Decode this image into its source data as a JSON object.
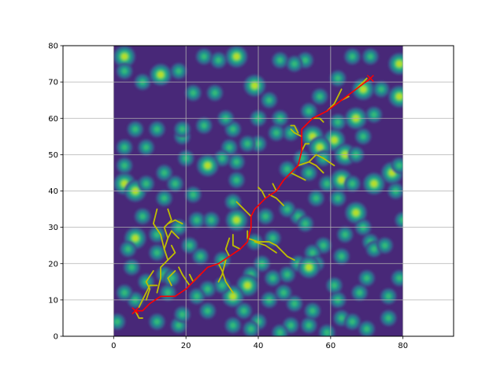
{
  "chart_data": {
    "type": "contour-path",
    "title": "",
    "xlabel": "",
    "ylabel": "",
    "xlim": [
      -14,
      94
    ],
    "ylim": [
      0,
      80
    ],
    "map_extent": {
      "x": [
        0,
        80
      ],
      "y": [
        0,
        80
      ]
    },
    "grid": true,
    "x_ticks": [
      0,
      20,
      40,
      60,
      80
    ],
    "y_ticks": [
      0,
      10,
      20,
      30,
      40,
      50,
      60,
      70,
      80
    ],
    "colors": {
      "background": "#440154",
      "field": "#482878",
      "contour_levels": [
        "#3e4a89",
        "#31688e",
        "#26828e",
        "#1f9e89",
        "#35b779",
        "#6ece58",
        "#b5de2b"
      ],
      "tree": "#bfbf00",
      "path": "#ff0000",
      "grid": "#b0b0b0"
    },
    "obstacles": [
      [
        3,
        77,
        2
      ],
      [
        3,
        73,
        1.5
      ],
      [
        8,
        70,
        1.5
      ],
      [
        13,
        72,
        2
      ],
      [
        18,
        73,
        1.5
      ],
      [
        25,
        77,
        1.5
      ],
      [
        29,
        76,
        1.5
      ],
      [
        34,
        77,
        2
      ],
      [
        22,
        67,
        1.5
      ],
      [
        28,
        67,
        1.5
      ],
      [
        39,
        69,
        2
      ],
      [
        46,
        76,
        1.5
      ],
      [
        53,
        76,
        1.5
      ],
      [
        50,
        75,
        1.5
      ],
      [
        66,
        77,
        1.5
      ],
      [
        71,
        77,
        1.5
      ],
      [
        79,
        75,
        2
      ],
      [
        62,
        71,
        1.5
      ],
      [
        69,
        68,
        2
      ],
      [
        79,
        66,
        2
      ],
      [
        74,
        68,
        1.5
      ],
      [
        43,
        65,
        1.5
      ],
      [
        46,
        60,
        1.5
      ],
      [
        49,
        56,
        1.5
      ],
      [
        57,
        66,
        1.5
      ],
      [
        54,
        62,
        1.5
      ],
      [
        67,
        60,
        2
      ],
      [
        72,
        61,
        1.5
      ],
      [
        62,
        59,
        1.5
      ],
      [
        61,
        54,
        2
      ],
      [
        64,
        50,
        2
      ],
      [
        69,
        55,
        1.5
      ],
      [
        67,
        50,
        1.5
      ],
      [
        77,
        45,
        2
      ],
      [
        79,
        47,
        1.5
      ],
      [
        72,
        42,
        2
      ],
      [
        78,
        40,
        1.5
      ],
      [
        59,
        42,
        1.5
      ],
      [
        63,
        43,
        2
      ],
      [
        66,
        42,
        1.5
      ],
      [
        55,
        55,
        2
      ],
      [
        57,
        52,
        2
      ],
      [
        58,
        49,
        1.5
      ],
      [
        52,
        49,
        1.5
      ],
      [
        54,
        45,
        1.5
      ],
      [
        48,
        46,
        1.5
      ],
      [
        45,
        56,
        1.5
      ],
      [
        40,
        53,
        1.5
      ],
      [
        37,
        53,
        1.5
      ],
      [
        33,
        57,
        1.5
      ],
      [
        31,
        60,
        1.5
      ],
      [
        32,
        52,
        1.5
      ],
      [
        34,
        48,
        1.5
      ],
      [
        30,
        49,
        1.5
      ],
      [
        26,
        47,
        2
      ],
      [
        20,
        49,
        1.5
      ],
      [
        19,
        55,
        1.5
      ],
      [
        19,
        57,
        1.5
      ],
      [
        12,
        57,
        1.5
      ],
      [
        6,
        57,
        1.5
      ],
      [
        3,
        52,
        1.5
      ],
      [
        9,
        52,
        1.5
      ],
      [
        3,
        47,
        1.5
      ],
      [
        3,
        42,
        2
      ],
      [
        6,
        40,
        2
      ],
      [
        9,
        42,
        1.5
      ],
      [
        14,
        38,
        1.5
      ],
      [
        17,
        42,
        1.5
      ],
      [
        22,
        39,
        1.5
      ],
      [
        23,
        32,
        1.5
      ],
      [
        27,
        32,
        1.5
      ],
      [
        33,
        37,
        1.5
      ],
      [
        34,
        43,
        1.5
      ],
      [
        34,
        32,
        2
      ],
      [
        39,
        26,
        1.5
      ],
      [
        44,
        27,
        1.5
      ],
      [
        51,
        33,
        1.5
      ],
      [
        53,
        31,
        1.5
      ],
      [
        48,
        35,
        1.5
      ],
      [
        56,
        38,
        1.5
      ],
      [
        62,
        38,
        1.5
      ],
      [
        67,
        34,
        2
      ],
      [
        69,
        30,
        1.5
      ],
      [
        71,
        26,
        1.5
      ],
      [
        72,
        24,
        1.5
      ],
      [
        63,
        22,
        1.5
      ],
      [
        58,
        25,
        1.5
      ],
      [
        55,
        23,
        1.5
      ],
      [
        56,
        20,
        1.5
      ],
      [
        51,
        20,
        1.5
      ],
      [
        48,
        17,
        1.5
      ],
      [
        44,
        16,
        1.5
      ],
      [
        41,
        20,
        1.5
      ],
      [
        38,
        17,
        1.5
      ],
      [
        37,
        14,
        2
      ],
      [
        33,
        11,
        2
      ],
      [
        30,
        14,
        1.5
      ],
      [
        26,
        13,
        1.5
      ],
      [
        23,
        11,
        1.5
      ],
      [
        30,
        21,
        1.5
      ],
      [
        24,
        22,
        1.5
      ],
      [
        21,
        25,
        1.5
      ],
      [
        18,
        30,
        1.5
      ],
      [
        12,
        28,
        1.5
      ],
      [
        12,
        23,
        1.5
      ],
      [
        6,
        27,
        2
      ],
      [
        4,
        24,
        1.5
      ],
      [
        5,
        19,
        1.5
      ],
      [
        9,
        15,
        1.5
      ],
      [
        6,
        10,
        1.5
      ],
      [
        3,
        12,
        1.5
      ],
      [
        1,
        4,
        1.5
      ],
      [
        12,
        4,
        1.5
      ],
      [
        18,
        3,
        1.5
      ],
      [
        19,
        6,
        1.5
      ],
      [
        15,
        12,
        1.5
      ],
      [
        14,
        17,
        1.5
      ],
      [
        16,
        16,
        1.5
      ],
      [
        26,
        7,
        1.5
      ],
      [
        33,
        3,
        1.5
      ],
      [
        40,
        4,
        1.5
      ],
      [
        43,
        10,
        1.5
      ],
      [
        47,
        12,
        1.5
      ],
      [
        50,
        9,
        1.5
      ],
      [
        49,
        3,
        1.5
      ],
      [
        54,
        3,
        1.5
      ],
      [
        55,
        7,
        1.5
      ],
      [
        54,
        19,
        2
      ],
      [
        62,
        10,
        1.5
      ],
      [
        63,
        5,
        1.5
      ],
      [
        66,
        4,
        1.5
      ],
      [
        68,
        12,
        1.5
      ],
      [
        70,
        16,
        1.5
      ],
      [
        79,
        16,
        1.5
      ],
      [
        76,
        11,
        1.5
      ],
      [
        76,
        5,
        1.5
      ],
      [
        70,
        2,
        1.5
      ],
      [
        59,
        1,
        1.5
      ],
      [
        38,
        2,
        1.5
      ],
      [
        42,
        33,
        1.5
      ],
      [
        64,
        28,
        1.5
      ],
      [
        61,
        14,
        1.5
      ],
      [
        80,
        32,
        1.5
      ],
      [
        75,
        25,
        1.5
      ],
      [
        46,
        1,
        1.5
      ],
      [
        36,
        7,
        1.5
      ],
      [
        8,
        33,
        1.5
      ],
      [
        14,
        45,
        1.5
      ],
      [
        25,
        58,
        1.5
      ],
      [
        40,
        60,
        1.5
      ]
    ],
    "path": {
      "start": [
        6,
        7
      ],
      "goal": [
        71,
        71
      ],
      "points": [
        [
          6,
          7
        ],
        [
          8,
          7
        ],
        [
          10,
          9
        ],
        [
          13,
          11
        ],
        [
          17,
          11
        ],
        [
          20,
          13
        ],
        [
          23,
          16
        ],
        [
          26,
          19
        ],
        [
          29,
          20
        ],
        [
          32,
          22
        ],
        [
          35,
          24
        ],
        [
          37,
          26
        ],
        [
          38,
          30
        ],
        [
          38,
          33
        ],
        [
          39,
          35
        ],
        [
          42,
          38
        ],
        [
          45,
          40
        ],
        [
          47,
          43
        ],
        [
          49,
          45
        ],
        [
          51,
          47
        ],
        [
          52,
          51
        ],
        [
          52,
          55
        ],
        [
          52,
          57
        ],
        [
          55,
          60
        ],
        [
          59,
          62
        ],
        [
          63,
          65
        ],
        [
          67,
          68
        ],
        [
          71,
          71
        ]
      ]
    },
    "tree_branches": [
      [
        [
          6,
          7
        ],
        [
          7,
          5
        ],
        [
          8,
          5
        ]
      ],
      [
        [
          7,
          8
        ],
        [
          9,
          12
        ],
        [
          10,
          14
        ],
        [
          12,
          14
        ]
      ],
      [
        [
          9,
          10
        ],
        [
          10,
          13
        ],
        [
          9,
          15
        ],
        [
          11,
          18
        ]
      ],
      [
        [
          12,
          12
        ],
        [
          13,
          16
        ],
        [
          13,
          19
        ],
        [
          15,
          21
        ],
        [
          14,
          24
        ],
        [
          15,
          27
        ],
        [
          14,
          30
        ],
        [
          16,
          32
        ],
        [
          15,
          35
        ]
      ],
      [
        [
          14,
          24
        ],
        [
          13,
          28
        ],
        [
          11,
          31
        ],
        [
          12,
          35
        ]
      ],
      [
        [
          15,
          21
        ],
        [
          17,
          23
        ],
        [
          16,
          25
        ]
      ],
      [
        [
          15,
          31
        ],
        [
          17,
          32
        ],
        [
          19,
          31
        ]
      ],
      [
        [
          15,
          27
        ],
        [
          16,
          29
        ],
        [
          18,
          27
        ]
      ],
      [
        [
          16,
          14
        ],
        [
          15,
          16
        ],
        [
          17,
          18
        ]
      ],
      [
        [
          21,
          14
        ],
        [
          19,
          17
        ],
        [
          18,
          19
        ]
      ],
      [
        [
          24,
          17
        ],
        [
          22,
          15
        ],
        [
          21,
          17
        ]
      ],
      [
        [
          29,
          20
        ],
        [
          30,
          18
        ],
        [
          31,
          15
        ],
        [
          33,
          12
        ]
      ],
      [
        [
          31,
          21
        ],
        [
          30,
          17
        ],
        [
          29,
          15
        ]
      ],
      [
        [
          32,
          22
        ],
        [
          31,
          24
        ],
        [
          32,
          27
        ]
      ],
      [
        [
          35,
          24
        ],
        [
          33,
          25
        ],
        [
          33,
          28
        ]
      ],
      [
        [
          37,
          27
        ],
        [
          40,
          26
        ],
        [
          43,
          26
        ],
        [
          45,
          25
        ],
        [
          48,
          22
        ],
        [
          50,
          21
        ]
      ],
      [
        [
          39,
          26
        ],
        [
          42,
          25
        ],
        [
          45,
          23
        ]
      ],
      [
        [
          37,
          27
        ],
        [
          37,
          29
        ]
      ],
      [
        [
          38,
          33
        ],
        [
          36,
          35
        ],
        [
          34,
          37
        ]
      ],
      [
        [
          42,
          38
        ],
        [
          41,
          40
        ],
        [
          40,
          41
        ]
      ],
      [
        [
          43,
          39
        ],
        [
          45,
          38
        ],
        [
          47,
          36
        ]
      ],
      [
        [
          45,
          40
        ],
        [
          44,
          42
        ]
      ],
      [
        [
          49,
          45
        ],
        [
          51,
          44
        ],
        [
          53,
          43
        ]
      ],
      [
        [
          51,
          47
        ],
        [
          54,
          48
        ],
        [
          56,
          50
        ],
        [
          58,
          49
        ],
        [
          61,
          47
        ]
      ],
      [
        [
          54,
          48
        ],
        [
          56,
          47
        ],
        [
          58,
          45
        ]
      ],
      [
        [
          52,
          51
        ],
        [
          53,
          53
        ],
        [
          54,
          53
        ]
      ],
      [
        [
          52,
          55
        ],
        [
          50,
          56
        ],
        [
          49,
          57
        ]
      ],
      [
        [
          51,
          56
        ],
        [
          50,
          58
        ],
        [
          49,
          58
        ]
      ],
      [
        [
          55,
          60
        ],
        [
          57,
          60
        ],
        [
          58,
          59
        ]
      ],
      [
        [
          59,
          62
        ],
        [
          61,
          64
        ],
        [
          62,
          66
        ],
        [
          63,
          68
        ]
      ],
      [
        [
          63,
          65
        ],
        [
          65,
          66
        ]
      ],
      [
        [
          67,
          68
        ],
        [
          69,
          70
        ],
        [
          70,
          71
        ]
      ]
    ]
  }
}
